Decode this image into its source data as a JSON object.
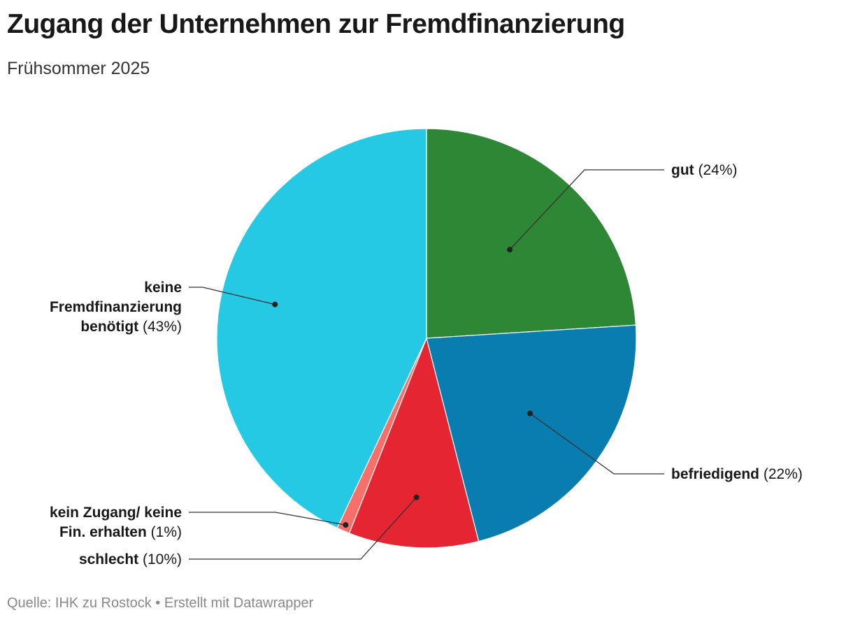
{
  "chart_data": {
    "type": "pie",
    "title": "Zugang der Unternehmen zur Fremdfinanzierung",
    "subtitle": "Frühsommer 2025",
    "unit": "%",
    "start_angle_deg": 0,
    "direction": "clockwise",
    "slices": [
      {
        "key": "gut",
        "label_lines": [
          "gut"
        ],
        "value": 24,
        "value_text": "(24%)",
        "color": "#2e8735",
        "label_side": "right"
      },
      {
        "key": "befriedigend",
        "label_lines": [
          "befriedigend"
        ],
        "value": 22,
        "value_text": "(22%)",
        "color": "#097db0",
        "label_side": "right"
      },
      {
        "key": "schlecht",
        "label_lines": [
          "schlecht"
        ],
        "value": 10,
        "value_text": "(10%)",
        "color": "#e52632",
        "label_side": "left"
      },
      {
        "key": "kein-zugang",
        "label_lines": [
          "kein Zugang/ keine",
          "Fin. erhalten"
        ],
        "value": 1,
        "value_text": "(1%)",
        "color": "#f66f69",
        "label_side": "left"
      },
      {
        "key": "keine-fremdfinanzierung",
        "label_lines": [
          "keine",
          "Fremdfinanzierung",
          "benötigt"
        ],
        "value": 43,
        "value_text": "(43%)",
        "color": "#25c9e4",
        "label_side": "left"
      }
    ]
  },
  "footer": {
    "source": "Quelle: IHK zu Rostock • Erstellt mit Datawrapper"
  }
}
